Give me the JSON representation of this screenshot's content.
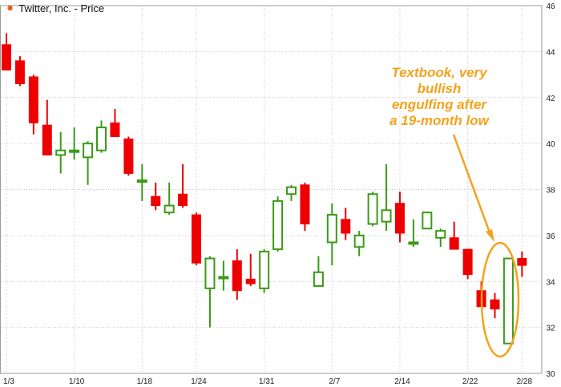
{
  "header": {
    "star_icon": "star-icon",
    "title": "Twitter, Inc. - Price"
  },
  "annotation": {
    "lines": [
      "Textbook, very",
      "bullish",
      "engulfing after",
      "a 19-month low"
    ],
    "color": "#f5a21b"
  },
  "colors": {
    "up": "#3a9a17",
    "down": "#ee0000",
    "grid": "#c9c9c9",
    "axis_text": "#222222"
  },
  "chart_data": {
    "type": "candlestick",
    "title": "Twitter, Inc. - Price",
    "ylim": [
      30,
      46
    ],
    "yticks": [
      30,
      32,
      34,
      36,
      38,
      40,
      42,
      44,
      46
    ],
    "xtick_labels": [
      "1/3",
      "1/10",
      "1/18",
      "1/24",
      "1/31",
      "2/7",
      "2/14",
      "2/22",
      "2/28"
    ],
    "xtick_session_index": [
      0,
      5,
      10,
      14,
      19,
      24,
      29,
      34,
      38
    ],
    "grid": true,
    "candles": [
      {
        "o": 44.3,
        "h": 44.8,
        "l": 43.2,
        "c": 43.2
      },
      {
        "o": 43.6,
        "h": 43.8,
        "l": 42.5,
        "c": 42.6
      },
      {
        "o": 42.9,
        "h": 43.0,
        "l": 40.4,
        "c": 40.9
      },
      {
        "o": 40.8,
        "h": 41.9,
        "l": 39.5,
        "c": 39.5
      },
      {
        "o": 39.5,
        "h": 40.5,
        "l": 38.7,
        "c": 39.7
      },
      {
        "o": 39.7,
        "h": 40.7,
        "l": 39.3,
        "c": 39.7
      },
      {
        "o": 39.4,
        "h": 40.1,
        "l": 38.2,
        "c": 40.0
      },
      {
        "o": 39.7,
        "h": 41.0,
        "l": 39.6,
        "c": 40.7
      },
      {
        "o": 40.9,
        "h": 41.5,
        "l": 40.3,
        "c": 40.3
      },
      {
        "o": 40.2,
        "h": 40.3,
        "l": 38.6,
        "c": 38.7
      },
      {
        "o": 38.4,
        "h": 39.1,
        "l": 37.5,
        "c": 38.4
      },
      {
        "o": 37.7,
        "h": 38.3,
        "l": 37.1,
        "c": 37.3
      },
      {
        "o": 37.0,
        "h": 38.3,
        "l": 36.9,
        "c": 37.3
      },
      {
        "o": 37.8,
        "h": 39.1,
        "l": 37.2,
        "c": 37.3
      },
      {
        "o": 36.9,
        "h": 37.0,
        "l": 34.7,
        "c": 34.8
      },
      {
        "o": 33.7,
        "h": 35.1,
        "l": 32.0,
        "c": 35.0
      },
      {
        "o": 34.2,
        "h": 34.9,
        "l": 33.6,
        "c": 34.2
      },
      {
        "o": 34.9,
        "h": 35.4,
        "l": 33.2,
        "c": 33.6
      },
      {
        "o": 34.1,
        "h": 35.2,
        "l": 33.8,
        "c": 33.9
      },
      {
        "o": 33.7,
        "h": 35.4,
        "l": 33.5,
        "c": 35.3
      },
      {
        "o": 35.4,
        "h": 37.7,
        "l": 35.3,
        "c": 37.5
      },
      {
        "o": 37.8,
        "h": 38.2,
        "l": 37.5,
        "c": 38.1
      },
      {
        "o": 38.2,
        "h": 38.3,
        "l": 36.2,
        "c": 36.5
      },
      {
        "o": 33.8,
        "h": 35.1,
        "l": 33.8,
        "c": 34.4
      },
      {
        "o": 35.7,
        "h": 37.4,
        "l": 34.7,
        "c": 36.9
      },
      {
        "o": 36.7,
        "h": 37.2,
        "l": 35.8,
        "c": 36.1
      },
      {
        "o": 35.5,
        "h": 36.2,
        "l": 35.1,
        "c": 36.0
      },
      {
        "o": 36.5,
        "h": 37.9,
        "l": 36.4,
        "c": 37.8
      },
      {
        "o": 36.6,
        "h": 39.1,
        "l": 36.2,
        "c": 37.1
      },
      {
        "o": 37.4,
        "h": 37.9,
        "l": 35.7,
        "c": 36.1
      },
      {
        "o": 35.7,
        "h": 36.7,
        "l": 35.5,
        "c": 35.7
      },
      {
        "o": 36.3,
        "h": 37.0,
        "l": 36.3,
        "c": 37.0
      },
      {
        "o": 35.9,
        "h": 36.3,
        "l": 35.5,
        "c": 36.2
      },
      {
        "o": 35.9,
        "h": 36.6,
        "l": 35.4,
        "c": 35.4
      },
      {
        "o": 35.4,
        "h": 35.4,
        "l": 34.1,
        "c": 34.3
      },
      {
        "o": 33.6,
        "h": 34.0,
        "l": 32.9,
        "c": 32.9
      },
      {
        "o": 33.2,
        "h": 33.5,
        "l": 32.4,
        "c": 32.8
      },
      {
        "o": 31.3,
        "h": 35.0,
        "l": 31.3,
        "c": 35.0
      },
      {
        "o": 35.0,
        "h": 35.3,
        "l": 34.2,
        "c": 34.7
      }
    ]
  }
}
